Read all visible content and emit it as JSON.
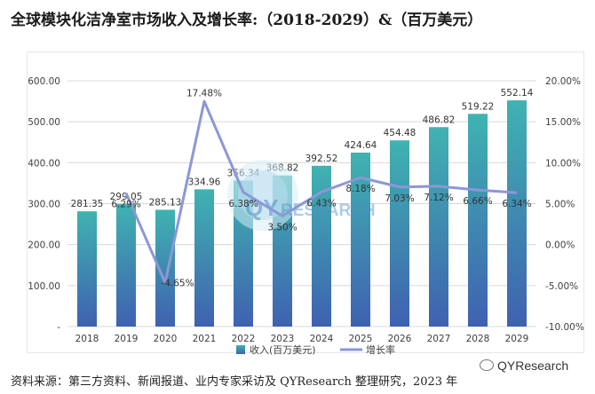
{
  "title": "全球模块化洁净室市场收入及增长率:（2018-2029）&（百万美元）",
  "source": "资料来源：第三方资料、新闻报道、业内专家采访及 QYResearch 整理研究，2023 年",
  "watermark_text": "QYResearch",
  "colors": {
    "bar_top": "#3fb3b1",
    "bar_bottom": "#3f61b0",
    "line": "#8c97d6",
    "axis_text": "#404040",
    "grid": "#d9d9d9"
  },
  "chart_data": {
    "type": "bar",
    "categories": [
      "2018",
      "2019",
      "2020",
      "2021",
      "2022",
      "2023",
      "2024",
      "2025",
      "2026",
      "2027",
      "2028",
      "2029"
    ],
    "series": [
      {
        "name": "收入(百万美元)",
        "type": "bar",
        "axis": "left",
        "values": [
          281.35,
          299.05,
          285.13,
          334.96,
          356.34,
          368.82,
          392.52,
          424.64,
          454.48,
          486.82,
          519.22,
          552.14
        ],
        "labels": [
          "281.35",
          "299.05",
          "285.13",
          "334.96",
          "356.34",
          "368.82",
          "392.52",
          "424.64",
          "454.48",
          "486.82",
          "519.22",
          "552.14"
        ]
      },
      {
        "name": "增长率",
        "type": "line",
        "axis": "right",
        "values": [
          null,
          6.29,
          -4.65,
          17.48,
          6.38,
          3.5,
          6.43,
          8.18,
          7.03,
          7.12,
          6.66,
          6.34
        ],
        "labels": [
          "",
          "6.29%",
          "-4.65%",
          "17.48%",
          "6.38%",
          "3.50%",
          "6.43%",
          "8.18%",
          "7.03%",
          "7.12%",
          "6.66%",
          "6.34%"
        ]
      }
    ],
    "y_left": {
      "min": 0,
      "max": 600,
      "ticks": [
        "-",
        "100.00",
        "200.00",
        "300.00",
        "400.00",
        "500.00",
        "600.00"
      ]
    },
    "y_right": {
      "min": -10,
      "max": 20,
      "ticks": [
        "-10.00%",
        "-5.00%",
        "0.00%",
        "5.00%",
        "10.00%",
        "15.00%",
        "20.00%"
      ]
    },
    "grid": true,
    "legend": "bottom"
  }
}
